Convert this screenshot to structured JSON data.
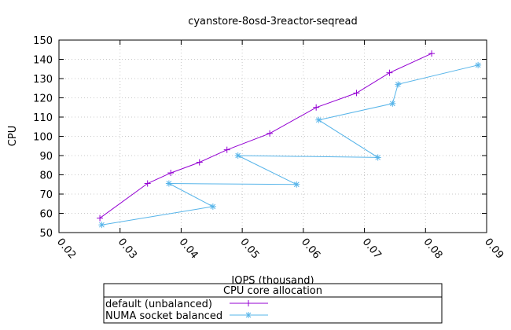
{
  "chart_data": {
    "type": "line",
    "title": "cyanstore-8osd-3reactor-seqread",
    "xlabel": "IOPS (thousand)",
    "ylabel": "CPU",
    "xlim": [
      0.02,
      0.09
    ],
    "ylim": [
      50,
      150
    ],
    "xticks": [
      "0.02",
      "0.03",
      "0.04",
      "0.05",
      "0.06",
      "0.07",
      "0.08",
      "0.09"
    ],
    "yticks": [
      "50",
      "60",
      "70",
      "80",
      "90",
      "100",
      "110",
      "120",
      "130",
      "140",
      "150"
    ],
    "grid": true,
    "legend": {
      "title": "CPU core allocation",
      "placement": "bottom-center"
    },
    "series": [
      {
        "name": "default (unbalanced)",
        "color": "#9400d3",
        "marker": "plus",
        "points": [
          [
            0.0267,
            57.5
          ],
          [
            0.0345,
            75.5
          ],
          [
            0.0383,
            81
          ],
          [
            0.043,
            86.5
          ],
          [
            0.0475,
            93
          ],
          [
            0.0545,
            101.5
          ],
          [
            0.0621,
            115
          ],
          [
            0.0687,
            122.5
          ],
          [
            0.0741,
            133
          ],
          [
            0.081,
            143
          ]
        ]
      },
      {
        "name": "NUMA socket balanced",
        "color": "#56b4e9",
        "marker": "star",
        "points": [
          [
            0.027,
            54
          ],
          [
            0.0452,
            63.5
          ],
          [
            0.038,
            75.5
          ],
          [
            0.0589,
            75
          ],
          [
            0.0493,
            90
          ],
          [
            0.0722,
            89
          ],
          [
            0.0625,
            108.5
          ],
          [
            0.0746,
            117
          ],
          [
            0.0755,
            127
          ],
          [
            0.0886,
            137
          ]
        ]
      }
    ]
  }
}
